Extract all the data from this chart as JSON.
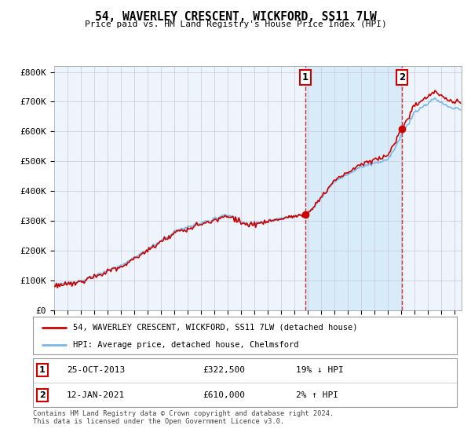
{
  "title": "54, WAVERLEY CRESCENT, WICKFORD, SS11 7LW",
  "subtitle": "Price paid vs. HM Land Registry's House Price Index (HPI)",
  "ylim": [
    0,
    820000
  ],
  "yticks": [
    0,
    100000,
    200000,
    300000,
    400000,
    500000,
    600000,
    700000,
    800000
  ],
  "ytick_labels": [
    "£0",
    "£100K",
    "£200K",
    "£300K",
    "£400K",
    "£500K",
    "£600K",
    "£700K",
    "£800K"
  ],
  "hpi_color": "#7ab8e8",
  "price_color": "#cc0000",
  "sale1_year": 2013.79,
  "sale2_year": 2021.04,
  "sale1_value": 322500,
  "sale2_value": 610000,
  "legend_line1": "54, WAVERLEY CRESCENT, WICKFORD, SS11 7LW (detached house)",
  "legend_line2": "HPI: Average price, detached house, Chelmsford",
  "annotation1_date": "25-OCT-2013",
  "annotation1_price": "£322,500",
  "annotation1_hpi": "19% ↓ HPI",
  "annotation2_date": "12-JAN-2021",
  "annotation2_price": "£610,000",
  "annotation2_hpi": "2% ↑ HPI",
  "footer": "Contains HM Land Registry data © Crown copyright and database right 2024.\nThis data is licensed under the Open Government Licence v3.0.",
  "background_color": "#ffffff",
  "plot_bg_color": "#eef4fb",
  "grid_color": "#c8c8d8",
  "shade_color": "#d0e8f8"
}
